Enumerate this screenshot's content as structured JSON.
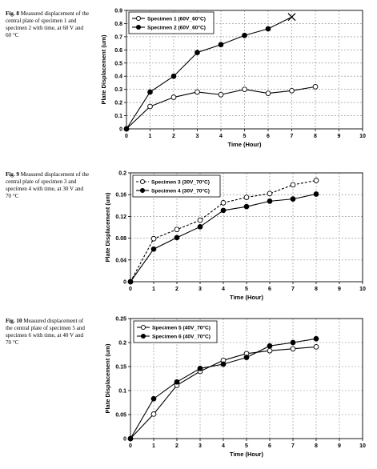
{
  "captions": [
    {
      "label": "Fig. 8",
      "text": "Measured displacement of the central plate of specimen 1 and specimen 2 with time, at 60 V and 60 °C"
    },
    {
      "label": "Fig. 9",
      "text": "Measured displacement of the central plate of specimen 3 and specimen 4 with time, at 30 V and 70 °C"
    },
    {
      "label": "Fig. 10",
      "text": "Measured displacement of the central plate of specimen 5 and specimen 6 with time, at 40 V and 70 °C"
    }
  ],
  "chart_data": [
    {
      "type": "line",
      "xlabel": "Time (Hour)",
      "ylabel": "Plate Displacement (um)",
      "xlim": [
        0,
        10
      ],
      "ylim": [
        0,
        0.9
      ],
      "xticks": [
        "0",
        "1",
        "2",
        "3",
        "4",
        "5",
        "6",
        "7",
        "8",
        "9",
        "10"
      ],
      "yticks": [
        "0",
        "0.1",
        "0.2",
        "0.3",
        "0.4",
        "0.5",
        "0.6",
        "0.7",
        "0.8",
        "0.9"
      ],
      "grid": true,
      "legend_position": "top-left",
      "series": [
        {
          "name": "Specimen 1 (60V_60°C)",
          "marker": "open-circle",
          "line": "solid",
          "x": [
            0,
            1,
            2,
            3,
            4,
            5,
            6,
            7,
            8
          ],
          "values": [
            0,
            0.17,
            0.24,
            0.28,
            0.26,
            0.3,
            0.27,
            0.29,
            0.32
          ]
        },
        {
          "name": "Specimen 2 (60V_60°C)",
          "marker": "filled-circle",
          "line": "solid",
          "end_marker": "cross",
          "x": [
            0,
            1,
            2,
            3,
            4,
            5,
            6,
            7
          ],
          "values": [
            0,
            0.28,
            0.4,
            0.58,
            0.64,
            0.71,
            0.76,
            0.85
          ]
        }
      ]
    },
    {
      "type": "line",
      "xlabel": "Time (Hour)",
      "ylabel": "Plate Displacement (um)",
      "xlim": [
        0,
        10
      ],
      "ylim": [
        0,
        0.2
      ],
      "xticks": [
        "0",
        "1",
        "2",
        "3",
        "4",
        "5",
        "6",
        "7",
        "8",
        "9",
        "10"
      ],
      "yticks": [
        "0",
        "0.04",
        "0.08",
        "0.12",
        "0.16",
        "0.2"
      ],
      "grid": true,
      "legend_position": "top-left",
      "series": [
        {
          "name": "Specimen 3 (30V_70°C)",
          "marker": "open-circle",
          "line": "dashed",
          "x": [
            0,
            1,
            2,
            3,
            4,
            5,
            6,
            7,
            8
          ],
          "values": [
            0,
            0.079,
            0.096,
            0.113,
            0.145,
            0.155,
            0.162,
            0.178,
            0.186
          ]
        },
        {
          "name": "Specimen 4 (30V_70°C)",
          "marker": "filled-circle",
          "line": "solid",
          "x": [
            0,
            1,
            2,
            3,
            4,
            5,
            6,
            7,
            8
          ],
          "values": [
            0,
            0.06,
            0.081,
            0.101,
            0.131,
            0.138,
            0.148,
            0.152,
            0.161
          ]
        }
      ]
    },
    {
      "type": "line",
      "xlabel": "Time (Hour)",
      "ylabel": "Plate Displacement (um)",
      "xlim": [
        0,
        10
      ],
      "ylim": [
        0,
        0.25
      ],
      "xticks": [
        "0",
        "1",
        "2",
        "3",
        "4",
        "5",
        "6",
        "7",
        "8",
        "9",
        "10"
      ],
      "yticks": [
        "0",
        "0.05",
        "0.1",
        "0.15",
        "0.2",
        "0.25"
      ],
      "grid": true,
      "legend_position": "top-left",
      "series": [
        {
          "name": "Specimen 5 (40V_70°C)",
          "marker": "open-circle",
          "line": "solid",
          "x": [
            0,
            1,
            2,
            3,
            4,
            5,
            6,
            7,
            8
          ],
          "values": [
            0,
            0.051,
            0.111,
            0.14,
            0.163,
            0.177,
            0.183,
            0.187,
            0.191
          ]
        },
        {
          "name": "Specimen 6 (40V_70°C)",
          "marker": "filled-circle",
          "line": "solid",
          "x": [
            0,
            1,
            2,
            3,
            4,
            5,
            6,
            7,
            8
          ],
          "values": [
            0,
            0.083,
            0.118,
            0.146,
            0.155,
            0.169,
            0.193,
            0.2,
            0.208
          ]
        }
      ]
    }
  ]
}
